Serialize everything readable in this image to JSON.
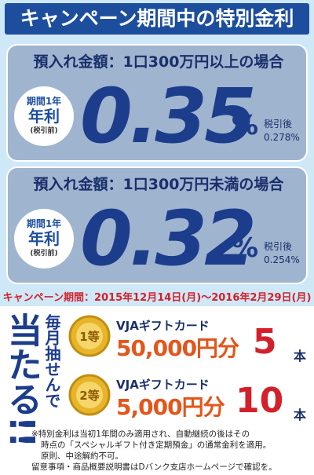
{
  "header": {
    "title": "キャンペーン期間中の特別金利"
  },
  "rates": [
    {
      "condition": "預入れ金額：1口300万円以上の場合",
      "period_label": "期間1年",
      "label": "年利",
      "note": "(税引前)",
      "rate": "0.35",
      "unit": "%",
      "after_tax_label": "税引後",
      "after_tax": "0.278%"
    },
    {
      "condition": "預入れ金額：1口300万円未満の場合",
      "period_label": "期間1年",
      "label": "年利",
      "note": "(税引前)",
      "rate": "0.32",
      "unit": "%",
      "after_tax_label": "税引後",
      "after_tax": "0.254%"
    }
  ],
  "campaign_period": "キャンペーン期間：2015年12月14日(月)～2016年2月29日(月)",
  "lottery": {
    "headline": "当たる!!",
    "lead": "毎月抽せんで",
    "prizes": [
      {
        "rank": "1等",
        "name": "VJAギフトカード",
        "amount": "50,000円分",
        "count": "5",
        "count_unit": "本"
      },
      {
        "rank": "2等",
        "name": "VJAギフトカード",
        "amount": "5,000円分",
        "count": "10",
        "count_unit": "本"
      }
    ]
  },
  "notes": [
    "※特別金利は当初1年間のみ適用され、自動継続の後はその",
    "時点の「スペシャルギフト付き定期預金」の通常金利を適用。",
    "原則、中途解約不可。",
    "留意事項・商品概要説明書はDバンク支店ホームページで確認を。"
  ]
}
